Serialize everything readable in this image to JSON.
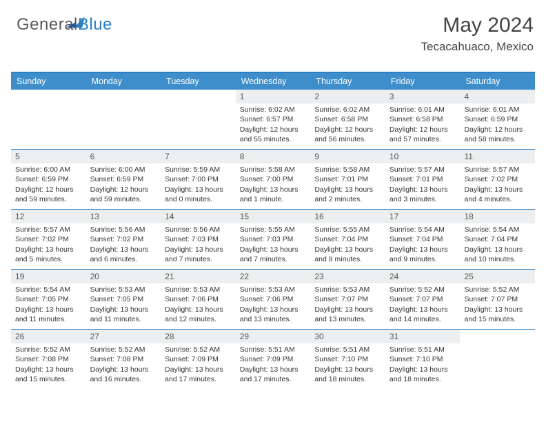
{
  "logo": {
    "text_gray": "General",
    "text_blue": "Blue"
  },
  "title": "May 2024",
  "subtitle": "Tecacahuaco, Mexico",
  "colors": {
    "header_bg": "#3d8ecb",
    "accent": "#2b7ec2",
    "daynum_bg": "#eceeef",
    "text": "#333333",
    "title_text": "#444444"
  },
  "day_headers": [
    "Sunday",
    "Monday",
    "Tuesday",
    "Wednesday",
    "Thursday",
    "Friday",
    "Saturday"
  ],
  "weeks": [
    [
      {
        "num": "",
        "sunrise": "",
        "sunset": "",
        "daylight": ""
      },
      {
        "num": "",
        "sunrise": "",
        "sunset": "",
        "daylight": ""
      },
      {
        "num": "",
        "sunrise": "",
        "sunset": "",
        "daylight": ""
      },
      {
        "num": "1",
        "sunrise": "Sunrise: 6:02 AM",
        "sunset": "Sunset: 6:57 PM",
        "daylight": "Daylight: 12 hours and 55 minutes."
      },
      {
        "num": "2",
        "sunrise": "Sunrise: 6:02 AM",
        "sunset": "Sunset: 6:58 PM",
        "daylight": "Daylight: 12 hours and 56 minutes."
      },
      {
        "num": "3",
        "sunrise": "Sunrise: 6:01 AM",
        "sunset": "Sunset: 6:58 PM",
        "daylight": "Daylight: 12 hours and 57 minutes."
      },
      {
        "num": "4",
        "sunrise": "Sunrise: 6:01 AM",
        "sunset": "Sunset: 6:59 PM",
        "daylight": "Daylight: 12 hours and 58 minutes."
      }
    ],
    [
      {
        "num": "5",
        "sunrise": "Sunrise: 6:00 AM",
        "sunset": "Sunset: 6:59 PM",
        "daylight": "Daylight: 12 hours and 59 minutes."
      },
      {
        "num": "6",
        "sunrise": "Sunrise: 6:00 AM",
        "sunset": "Sunset: 6:59 PM",
        "daylight": "Daylight: 12 hours and 59 minutes."
      },
      {
        "num": "7",
        "sunrise": "Sunrise: 5:59 AM",
        "sunset": "Sunset: 7:00 PM",
        "daylight": "Daylight: 13 hours and 0 minutes."
      },
      {
        "num": "8",
        "sunrise": "Sunrise: 5:58 AM",
        "sunset": "Sunset: 7:00 PM",
        "daylight": "Daylight: 13 hours and 1 minute."
      },
      {
        "num": "9",
        "sunrise": "Sunrise: 5:58 AM",
        "sunset": "Sunset: 7:01 PM",
        "daylight": "Daylight: 13 hours and 2 minutes."
      },
      {
        "num": "10",
        "sunrise": "Sunrise: 5:57 AM",
        "sunset": "Sunset: 7:01 PM",
        "daylight": "Daylight: 13 hours and 3 minutes."
      },
      {
        "num": "11",
        "sunrise": "Sunrise: 5:57 AM",
        "sunset": "Sunset: 7:02 PM",
        "daylight": "Daylight: 13 hours and 4 minutes."
      }
    ],
    [
      {
        "num": "12",
        "sunrise": "Sunrise: 5:57 AM",
        "sunset": "Sunset: 7:02 PM",
        "daylight": "Daylight: 13 hours and 5 minutes."
      },
      {
        "num": "13",
        "sunrise": "Sunrise: 5:56 AM",
        "sunset": "Sunset: 7:02 PM",
        "daylight": "Daylight: 13 hours and 6 minutes."
      },
      {
        "num": "14",
        "sunrise": "Sunrise: 5:56 AM",
        "sunset": "Sunset: 7:03 PM",
        "daylight": "Daylight: 13 hours and 7 minutes."
      },
      {
        "num": "15",
        "sunrise": "Sunrise: 5:55 AM",
        "sunset": "Sunset: 7:03 PM",
        "daylight": "Daylight: 13 hours and 7 minutes."
      },
      {
        "num": "16",
        "sunrise": "Sunrise: 5:55 AM",
        "sunset": "Sunset: 7:04 PM",
        "daylight": "Daylight: 13 hours and 8 minutes."
      },
      {
        "num": "17",
        "sunrise": "Sunrise: 5:54 AM",
        "sunset": "Sunset: 7:04 PM",
        "daylight": "Daylight: 13 hours and 9 minutes."
      },
      {
        "num": "18",
        "sunrise": "Sunrise: 5:54 AM",
        "sunset": "Sunset: 7:04 PM",
        "daylight": "Daylight: 13 hours and 10 minutes."
      }
    ],
    [
      {
        "num": "19",
        "sunrise": "Sunrise: 5:54 AM",
        "sunset": "Sunset: 7:05 PM",
        "daylight": "Daylight: 13 hours and 11 minutes."
      },
      {
        "num": "20",
        "sunrise": "Sunrise: 5:53 AM",
        "sunset": "Sunset: 7:05 PM",
        "daylight": "Daylight: 13 hours and 11 minutes."
      },
      {
        "num": "21",
        "sunrise": "Sunrise: 5:53 AM",
        "sunset": "Sunset: 7:06 PM",
        "daylight": "Daylight: 13 hours and 12 minutes."
      },
      {
        "num": "22",
        "sunrise": "Sunrise: 5:53 AM",
        "sunset": "Sunset: 7:06 PM",
        "daylight": "Daylight: 13 hours and 13 minutes."
      },
      {
        "num": "23",
        "sunrise": "Sunrise: 5:53 AM",
        "sunset": "Sunset: 7:07 PM",
        "daylight": "Daylight: 13 hours and 13 minutes."
      },
      {
        "num": "24",
        "sunrise": "Sunrise: 5:52 AM",
        "sunset": "Sunset: 7:07 PM",
        "daylight": "Daylight: 13 hours and 14 minutes."
      },
      {
        "num": "25",
        "sunrise": "Sunrise: 5:52 AM",
        "sunset": "Sunset: 7:07 PM",
        "daylight": "Daylight: 13 hours and 15 minutes."
      }
    ],
    [
      {
        "num": "26",
        "sunrise": "Sunrise: 5:52 AM",
        "sunset": "Sunset: 7:08 PM",
        "daylight": "Daylight: 13 hours and 15 minutes."
      },
      {
        "num": "27",
        "sunrise": "Sunrise: 5:52 AM",
        "sunset": "Sunset: 7:08 PM",
        "daylight": "Daylight: 13 hours and 16 minutes."
      },
      {
        "num": "28",
        "sunrise": "Sunrise: 5:52 AM",
        "sunset": "Sunset: 7:09 PM",
        "daylight": "Daylight: 13 hours and 17 minutes."
      },
      {
        "num": "29",
        "sunrise": "Sunrise: 5:51 AM",
        "sunset": "Sunset: 7:09 PM",
        "daylight": "Daylight: 13 hours and 17 minutes."
      },
      {
        "num": "30",
        "sunrise": "Sunrise: 5:51 AM",
        "sunset": "Sunset: 7:10 PM",
        "daylight": "Daylight: 13 hours and 18 minutes."
      },
      {
        "num": "31",
        "sunrise": "Sunrise: 5:51 AM",
        "sunset": "Sunset: 7:10 PM",
        "daylight": "Daylight: 13 hours and 18 minutes."
      },
      {
        "num": "",
        "sunrise": "",
        "sunset": "",
        "daylight": ""
      }
    ]
  ]
}
